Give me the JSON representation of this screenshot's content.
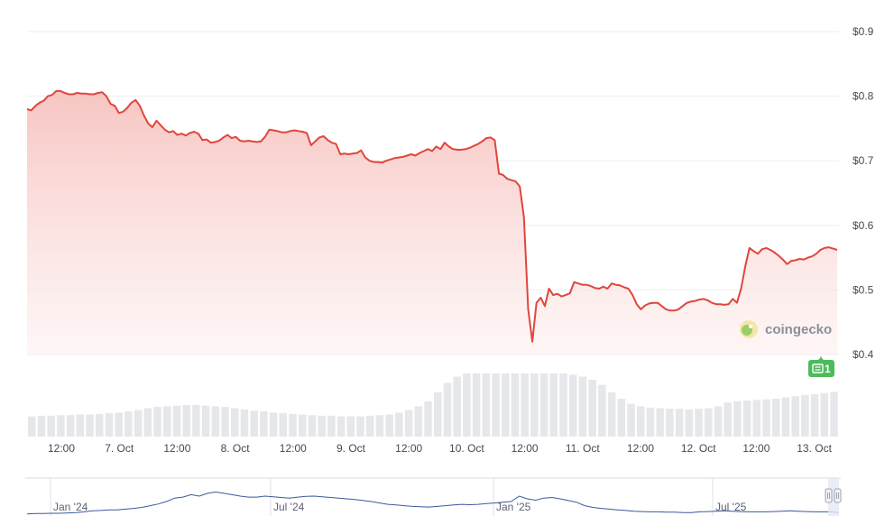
{
  "chart_data": {
    "type": "area",
    "y_unit_prefix": "$",
    "ylim": [
      0.4,
      0.9
    ],
    "y_ticks": [
      "$0.9",
      "$0.8",
      "$0.7",
      "$0.6",
      "$0.5",
      "$0.4"
    ],
    "y_tick_values": [
      0.9,
      0.8,
      0.7,
      0.6,
      0.5,
      0.4
    ],
    "x_ticks": [
      "12:00",
      "7. Oct",
      "12:00",
      "8. Oct",
      "12:00",
      "9. Oct",
      "12:00",
      "10. Oct",
      "12:00",
      "11. Oct",
      "12:00",
      "12. Oct",
      "12:00",
      "13. Oct"
    ],
    "grid": true,
    "colors": {
      "line": "#e0463c",
      "area_top": "#f7c5c2",
      "volume": "#e6e7ea",
      "grid": "#eceef1",
      "navigator_line": "#3a5a9c",
      "badge": "#4cbb5b"
    },
    "price_series": {
      "name": "Price",
      "values": [
        0.78,
        0.778,
        0.785,
        0.79,
        0.793,
        0.8,
        0.802,
        0.808,
        0.808,
        0.805,
        0.803,
        0.803,
        0.805,
        0.804,
        0.804,
        0.803,
        0.803,
        0.805,
        0.806,
        0.8,
        0.788,
        0.785,
        0.774,
        0.776,
        0.782,
        0.79,
        0.794,
        0.785,
        0.77,
        0.758,
        0.752,
        0.762,
        0.755,
        0.748,
        0.744,
        0.746,
        0.74,
        0.742,
        0.739,
        0.743,
        0.745,
        0.742,
        0.732,
        0.733,
        0.728,
        0.729,
        0.731,
        0.736,
        0.74,
        0.735,
        0.737,
        0.731,
        0.73,
        0.731,
        0.73,
        0.729,
        0.73,
        0.737,
        0.748,
        0.747,
        0.746,
        0.744,
        0.744,
        0.746,
        0.747,
        0.746,
        0.745,
        0.743,
        0.724,
        0.73,
        0.736,
        0.738,
        0.732,
        0.728,
        0.726,
        0.71,
        0.711,
        0.71,
        0.711,
        0.712,
        0.716,
        0.705,
        0.7,
        0.698,
        0.698,
        0.697,
        0.7,
        0.702,
        0.704,
        0.705,
        0.706,
        0.708,
        0.71,
        0.708,
        0.712,
        0.715,
        0.718,
        0.715,
        0.722,
        0.718,
        0.728,
        0.722,
        0.718,
        0.717,
        0.717,
        0.718,
        0.72,
        0.723,
        0.726,
        0.73,
        0.735,
        0.736,
        0.732,
        0.68,
        0.678,
        0.672,
        0.67,
        0.668,
        0.66,
        0.612,
        0.47,
        0.42,
        0.48,
        0.488,
        0.475,
        0.502,
        0.492,
        0.494,
        0.49,
        0.492,
        0.495,
        0.512,
        0.51,
        0.508,
        0.508,
        0.506,
        0.503,
        0.502,
        0.505,
        0.502,
        0.51,
        0.508,
        0.507,
        0.504,
        0.502,
        0.492,
        0.478,
        0.47,
        0.476,
        0.479,
        0.48,
        0.48,
        0.475,
        0.47,
        0.468,
        0.468,
        0.47,
        0.475,
        0.48,
        0.482,
        0.483,
        0.485,
        0.486,
        0.484,
        0.48,
        0.478,
        0.478,
        0.477,
        0.478,
        0.486,
        0.48,
        0.502,
        0.537,
        0.565,
        0.56,
        0.556,
        0.563,
        0.565,
        0.562,
        0.558,
        0.553,
        0.547,
        0.54,
        0.545,
        0.546,
        0.548,
        0.547,
        0.55,
        0.552,
        0.556,
        0.562,
        0.565,
        0.566,
        0.564,
        0.562
      ]
    },
    "volume_relative": [
      0.32,
      0.33,
      0.33,
      0.34,
      0.34,
      0.35,
      0.35,
      0.36,
      0.37,
      0.38,
      0.4,
      0.42,
      0.45,
      0.47,
      0.48,
      0.49,
      0.5,
      0.5,
      0.49,
      0.48,
      0.47,
      0.45,
      0.43,
      0.41,
      0.4,
      0.38,
      0.37,
      0.36,
      0.35,
      0.34,
      0.33,
      0.33,
      0.32,
      0.32,
      0.32,
      0.33,
      0.34,
      0.35,
      0.38,
      0.42,
      0.48,
      0.56,
      0.7,
      0.85,
      0.95,
      1.0,
      1.0,
      1.0,
      1.0,
      1.0,
      1.0,
      1.0,
      1.0,
      1.0,
      1.0,
      1.0,
      0.98,
      0.95,
      0.9,
      0.82,
      0.7,
      0.6,
      0.52,
      0.48,
      0.46,
      0.45,
      0.44,
      0.44,
      0.43,
      0.44,
      0.45,
      0.48,
      0.54,
      0.56,
      0.57,
      0.58,
      0.59,
      0.6,
      0.62,
      0.64,
      0.66,
      0.67,
      0.69,
      0.71
    ],
    "navigator": {
      "x_ticks": [
        "Jan '24",
        "Jul '24",
        "Jan '25",
        "Jul '25"
      ],
      "values": [
        0.06,
        0.07,
        0.07,
        0.08,
        0.08,
        0.09,
        0.1,
        0.12,
        0.15,
        0.16,
        0.18,
        0.18,
        0.2,
        0.22,
        0.25,
        0.3,
        0.35,
        0.42,
        0.52,
        0.55,
        0.62,
        0.58,
        0.66,
        0.7,
        0.66,
        0.62,
        0.58,
        0.55,
        0.55,
        0.58,
        0.56,
        0.54,
        0.52,
        0.55,
        0.57,
        0.58,
        0.56,
        0.54,
        0.52,
        0.5,
        0.48,
        0.45,
        0.42,
        0.38,
        0.34,
        0.32,
        0.3,
        0.28,
        0.27,
        0.26,
        0.28,
        0.3,
        0.32,
        0.34,
        0.33,
        0.34,
        0.36,
        0.38,
        0.4,
        0.42,
        0.58,
        0.5,
        0.46,
        0.52,
        0.54,
        0.5,
        0.45,
        0.4,
        0.3,
        0.25,
        0.22,
        0.2,
        0.18,
        0.16,
        0.14,
        0.13,
        0.12,
        0.12,
        0.11,
        0.11,
        0.1,
        0.1,
        0.12,
        0.13,
        0.14,
        0.15,
        0.14,
        0.13,
        0.12,
        0.12,
        0.12,
        0.13,
        0.14,
        0.15,
        0.14,
        0.13,
        0.12,
        0.12,
        0.12,
        0.1
      ]
    }
  },
  "logo": {
    "text": "coingecko"
  },
  "news_badge": {
    "count": "1"
  }
}
